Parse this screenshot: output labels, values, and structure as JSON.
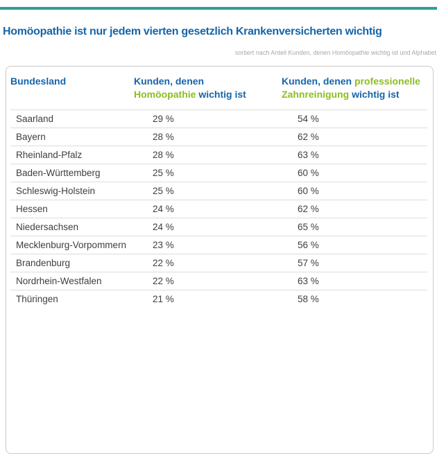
{
  "header": {
    "title": "Homöopathie ist nur jedem vierten gesetzlich Krankenversicherten wichtig",
    "sort_note": "sortiert nach Anteil Kunden, denen Homöopathie wichtig ist und Alphabet"
  },
  "colors": {
    "accent_teal": "#2f9e93",
    "title_blue": "#1565ab",
    "highlight_green": "#8cbd22",
    "row_text": "#3e3e3e",
    "note_gray": "#a8a8a8",
    "frame_border": "#c9c9c9",
    "row_separator": "#dcdcdc"
  },
  "table": {
    "col1_label": "Bundesland",
    "col2": {
      "line1_blue": "Kunden, denen",
      "line2_green": "Homöopathie",
      "line2_blue": " wichtig ist"
    },
    "col3": {
      "line1_blue": "Kunden, denen ",
      "line1_green": "professionelle",
      "line2_green": "Zahnreinigung",
      "line2_blue": " wichtig ist"
    },
    "rows": [
      {
        "land": "Saarland",
        "homoeopathie": "29 %",
        "zahnreinigung": "54 %"
      },
      {
        "land": "Bayern",
        "homoeopathie": "28 %",
        "zahnreinigung": "62 %"
      },
      {
        "land": "Rheinland-Pfalz",
        "homoeopathie": "28 %",
        "zahnreinigung": "63 %"
      },
      {
        "land": "Baden-Württemberg",
        "homoeopathie": "25 %",
        "zahnreinigung": "60 %"
      },
      {
        "land": "Schleswig-Holstein",
        "homoeopathie": "25 %",
        "zahnreinigung": "60 %"
      },
      {
        "land": "Hessen",
        "homoeopathie": "24 %",
        "zahnreinigung": "62 %"
      },
      {
        "land": "Niedersachsen",
        "homoeopathie": "24 %",
        "zahnreinigung": "65 %"
      },
      {
        "land": "Mecklenburg-Vorpommern",
        "homoeopathie": "23 %",
        "zahnreinigung": "56 %"
      },
      {
        "land": "Brandenburg",
        "homoeopathie": "22 %",
        "zahnreinigung": "57 %"
      },
      {
        "land": "Nordrhein-Westfalen",
        "homoeopathie": "22 %",
        "zahnreinigung": "63 %"
      },
      {
        "land": "Thüringen",
        "homoeopathie": "21 %",
        "zahnreinigung": "58 %"
      }
    ]
  },
  "chart_data": {
    "type": "table",
    "title": "Homöopathie ist nur jedem vierten gesetzlich Krankenversicherten wichtig",
    "sort_note": "sortiert nach Anteil Kunden, denen Homöopathie wichtig ist und Alphabet",
    "columns": [
      "Bundesland",
      "Kunden, denen Homöopathie wichtig ist",
      "Kunden, denen professionelle Zahnreinigung wichtig ist"
    ],
    "unit": "%",
    "rows": [
      [
        "Saarland",
        29,
        54
      ],
      [
        "Bayern",
        28,
        62
      ],
      [
        "Rheinland-Pfalz",
        28,
        63
      ],
      [
        "Baden-Württemberg",
        25,
        60
      ],
      [
        "Schleswig-Holstein",
        25,
        60
      ],
      [
        "Hessen",
        24,
        62
      ],
      [
        "Niedersachsen",
        24,
        65
      ],
      [
        "Mecklenburg-Vorpommern",
        23,
        56
      ],
      [
        "Brandenburg",
        22,
        57
      ],
      [
        "Nordrhein-Westfalen",
        22,
        63
      ],
      [
        "Thüringen",
        21,
        58
      ]
    ]
  }
}
